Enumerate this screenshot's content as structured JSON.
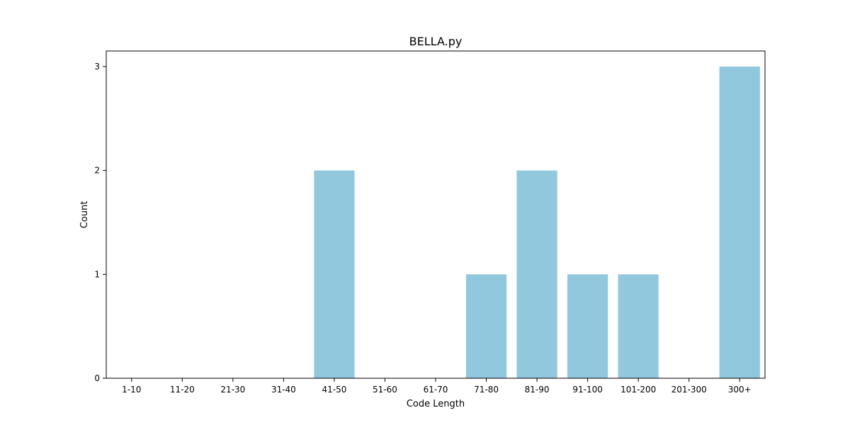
{
  "chart_data": {
    "type": "bar",
    "title": "BELLA.py",
    "xlabel": "Code Length",
    "ylabel": "Count",
    "categories": [
      "1-10",
      "11-20",
      "21-30",
      "31-40",
      "41-50",
      "51-60",
      "61-70",
      "71-80",
      "81-90",
      "91-100",
      "101-200",
      "201-300",
      "300+"
    ],
    "values": [
      0,
      0,
      0,
      0,
      2,
      0,
      0,
      1,
      2,
      1,
      1,
      0,
      3
    ],
    "ylim": [
      0,
      3.15
    ],
    "yticks": [
      0,
      1,
      2,
      3
    ],
    "grid": false,
    "legend": "none",
    "bar_color": "#92c8de"
  }
}
